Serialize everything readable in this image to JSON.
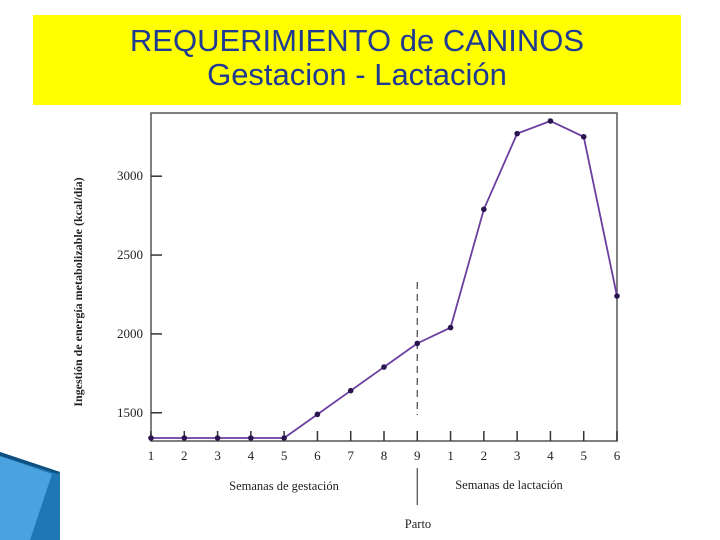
{
  "title": {
    "line1": "REQUERIMIENTO de CANINOS",
    "line2": "Gestacion  -  Lactación"
  },
  "colors": {
    "title_bg": "#ffff00",
    "title_text": "#1f3a93",
    "line": "#6b3fa0",
    "decoration": "#1f78b4"
  },
  "chart_data": {
    "type": "line",
    "ylabel": "Ingestión de energía metabolizable (kcal/día)",
    "ylim": [
      1340,
      3380
    ],
    "yticks": [
      1500,
      2000,
      2500,
      3000
    ],
    "x": [
      "1",
      "2",
      "3",
      "4",
      "5",
      "6",
      "7",
      "8",
      "9",
      "1",
      "2",
      "3",
      "4",
      "5",
      "6"
    ],
    "values": [
      1340,
      1340,
      1340,
      1340,
      1340,
      1490,
      1640,
      1790,
      1940,
      2040,
      2790,
      3270,
      3350,
      3250,
      2240
    ],
    "group_labels": [
      "Semanas de gestación",
      "Semanas de lactación"
    ],
    "event_label": "Parto",
    "event_index": 8
  }
}
